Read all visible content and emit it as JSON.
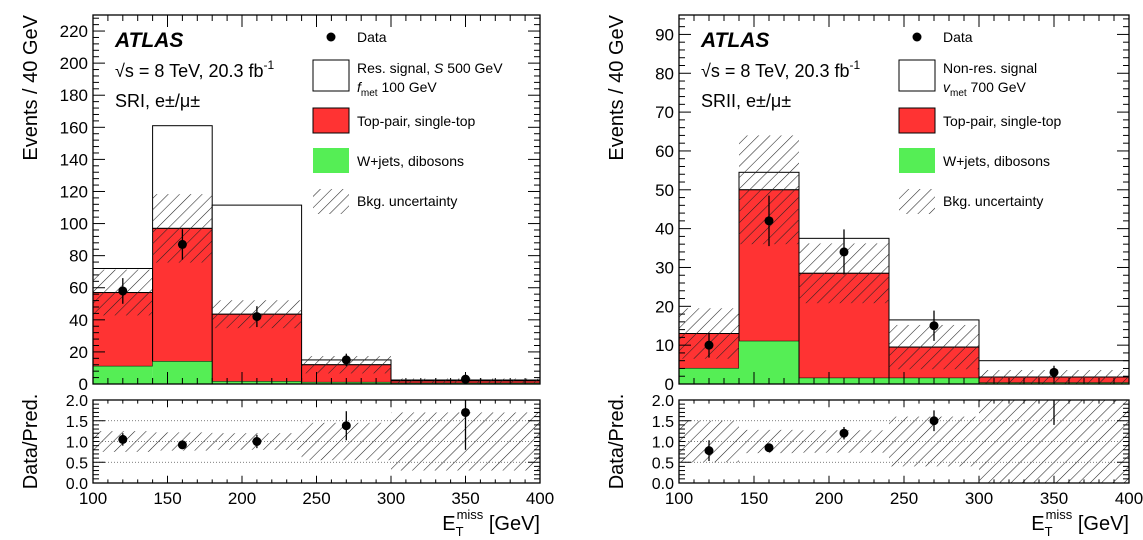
{
  "colors": {
    "ttbar": "#ff3333",
    "wjets": "#55ee55",
    "signal_fill": "#ffffff",
    "hatch_stroke": "#222222",
    "data_marker": "#000000"
  },
  "chart_data": [
    {
      "type": "bar",
      "stacked": true,
      "panel": "left",
      "atlas_label": "ATLAS",
      "energy_text": "√s = 8 TeV, 20.3 fb",
      "energy_sup": "-1",
      "region_text": "SRI, e±/μ±",
      "ylabel": "Events / 40 GeV",
      "ratio_ylabel": "Data/Pred.",
      "xlabel_main": "E",
      "xlabel_sub": "T",
      "xlabel_sup": "miss",
      "xlabel_unit": "[GeV]",
      "xlim": [
        100,
        400
      ],
      "ylim": [
        0,
        230
      ],
      "ratio_ylim": [
        0,
        2.0
      ],
      "x_ticks": [
        100,
        150,
        200,
        250,
        300,
        350,
        400
      ],
      "y_ticks": [
        0,
        20,
        40,
        60,
        80,
        100,
        120,
        140,
        160,
        180,
        200,
        220
      ],
      "ratio_ticks": [
        "0.0",
        "0.5",
        "1.0",
        "1.5",
        "2.0"
      ],
      "bin_edges": [
        100,
        140,
        180,
        240,
        300,
        400
      ],
      "series": [
        {
          "name": "W+jets, dibosons",
          "values": [
            11,
            14,
            1.5,
            1,
            0.5
          ]
        },
        {
          "name": "Top-pair, single-top",
          "values": [
            46,
            83,
            42,
            11,
            1.5
          ]
        }
      ],
      "signal": {
        "name_parts": [
          "Res. signal, ",
          "S",
          " 500 GeV"
        ],
        "name_line2": [
          "f",
          "met",
          " 100 GeV"
        ],
        "values": [
          15,
          64,
          68,
          3,
          0.5
        ]
      },
      "bkg_uncertainty": {
        "name": "Bkg. uncertainty",
        "rel_unc": [
          0.25,
          0.22,
          0.2,
          0.45,
          0.7
        ]
      },
      "data": {
        "name": "Data",
        "x": [
          120,
          160,
          210,
          270,
          350
        ],
        "y": [
          58,
          87,
          42,
          15,
          3
        ],
        "yerr": [
          8,
          9.5,
          6.5,
          3.9,
          1.7
        ]
      },
      "ratio": {
        "y": [
          1.05,
          0.92,
          1.0,
          1.38,
          1.7
        ],
        "yerr": [
          0.15,
          0.1,
          0.16,
          0.35,
          0.9
        ],
        "band": [
          0.25,
          0.22,
          0.2,
          0.45,
          0.7
        ]
      }
    },
    {
      "type": "bar",
      "stacked": true,
      "panel": "right",
      "atlas_label": "ATLAS",
      "energy_text": "√s = 8 TeV, 20.3 fb",
      "energy_sup": "-1",
      "region_text": "SRII, e±/μ±",
      "ylabel": "Events / 40 GeV",
      "ratio_ylabel": "Data/Pred.",
      "xlabel_main": "E",
      "xlabel_sub": "T",
      "xlabel_sup": "miss",
      "xlabel_unit": "[GeV]",
      "xlim": [
        100,
        400
      ],
      "ylim": [
        0,
        95
      ],
      "ratio_ylim": [
        0,
        2.0
      ],
      "x_ticks": [
        100,
        150,
        200,
        250,
        300,
        350,
        400
      ],
      "y_ticks": [
        0,
        10,
        20,
        30,
        40,
        50,
        60,
        70,
        80,
        90
      ],
      "ratio_ticks": [
        "0.0",
        "0.5",
        "1.0",
        "1.5",
        "2.0"
      ],
      "bin_edges": [
        100,
        140,
        180,
        240,
        300,
        400
      ],
      "series": [
        {
          "name": "W+jets, dibosons",
          "values": [
            4,
            11,
            1.5,
            1.5,
            0.3
          ]
        },
        {
          "name": "Top-pair, single-top",
          "values": [
            9,
            39,
            27,
            8,
            1.5
          ]
        }
      ],
      "signal": {
        "name_parts": [
          "Non-res. signal",
          "",
          ""
        ],
        "name_line2": [
          "v",
          "met",
          " 700 GeV"
        ],
        "values": [
          0,
          4.5,
          9,
          7,
          4.2
        ]
      },
      "bkg_uncertainty": {
        "name": "Bkg. uncertainty",
        "rel_unc": [
          0.5,
          0.28,
          0.27,
          0.6,
          1.0
        ]
      },
      "data": {
        "name": "Data",
        "x": [
          120,
          160,
          210,
          270,
          350
        ],
        "y": [
          10,
          42,
          34,
          15,
          3
        ],
        "yerr": [
          3.2,
          6.5,
          5.8,
          3.9,
          1.7
        ]
      },
      "ratio": {
        "y": [
          0.78,
          0.85,
          1.2,
          1.5,
          2.0
        ],
        "yerr": [
          0.25,
          0.1,
          0.15,
          0.25,
          0.6
        ],
        "band": [
          0.5,
          0.28,
          0.27,
          0.6,
          1.0
        ]
      }
    }
  ]
}
